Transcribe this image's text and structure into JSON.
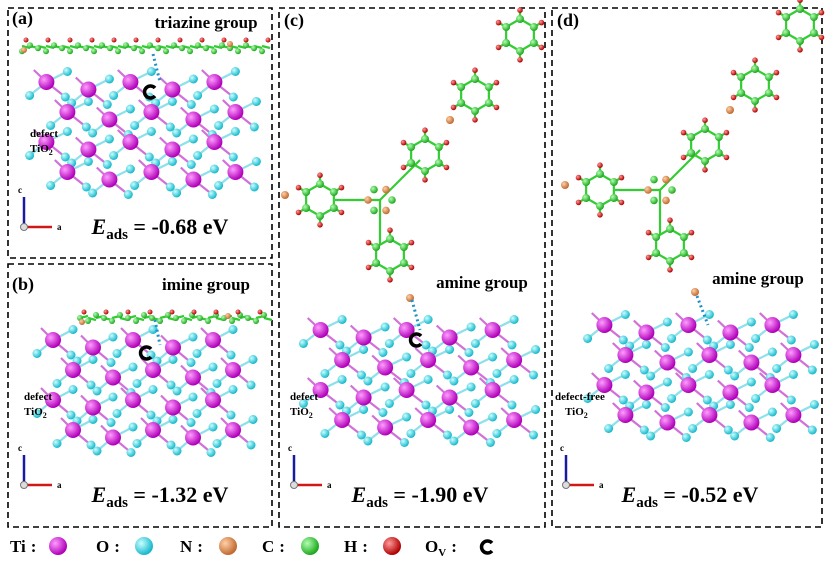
{
  "panels": [
    {
      "label": "(a)",
      "group": "triazine group",
      "substrate": {
        "line1": "defect",
        "formula": "TiO",
        "subscript": "2"
      },
      "energy": {
        "symbol": "E",
        "subscript": "ads",
        "value": " = -0.68 eV"
      },
      "axis_labels": {
        "up": "c",
        "right": "a"
      }
    },
    {
      "label": "(b)",
      "group": "imine group",
      "substrate": {
        "line1": "defect",
        "formula": "TiO",
        "subscript": "2"
      },
      "energy": {
        "symbol": "E",
        "subscript": "ads",
        "value": " = -1.32 eV"
      },
      "axis_labels": {
        "up": "c",
        "right": "a"
      }
    },
    {
      "label": "(c)",
      "group": "amine group",
      "substrate": {
        "line1": "defect",
        "formula": "TiO",
        "subscript": "2"
      },
      "energy": {
        "symbol": "E",
        "subscript": "ads",
        "value": " = -1.90 eV"
      },
      "axis_labels": {
        "up": "c",
        "right": "a"
      }
    },
    {
      "label": "(d)",
      "group": "amine group",
      "substrate": {
        "line1": "defect-free",
        "formula": "TiO",
        "subscript": "2"
      },
      "energy": {
        "symbol": "E",
        "subscript": "ads",
        "value": " = -0.52 eV"
      },
      "axis_labels": {
        "up": "c",
        "right": "a"
      }
    }
  ],
  "legend": [
    {
      "symbol": "Ti",
      "sep": ":"
    },
    {
      "symbol": "O",
      "sep": ":"
    },
    {
      "symbol": "N",
      "sep": ":"
    },
    {
      "symbol": "C",
      "sep": ":"
    },
    {
      "symbol": "H",
      "sep": ":"
    },
    {
      "symbol": "O",
      "subscript": "V",
      "sep": ":"
    }
  ]
}
